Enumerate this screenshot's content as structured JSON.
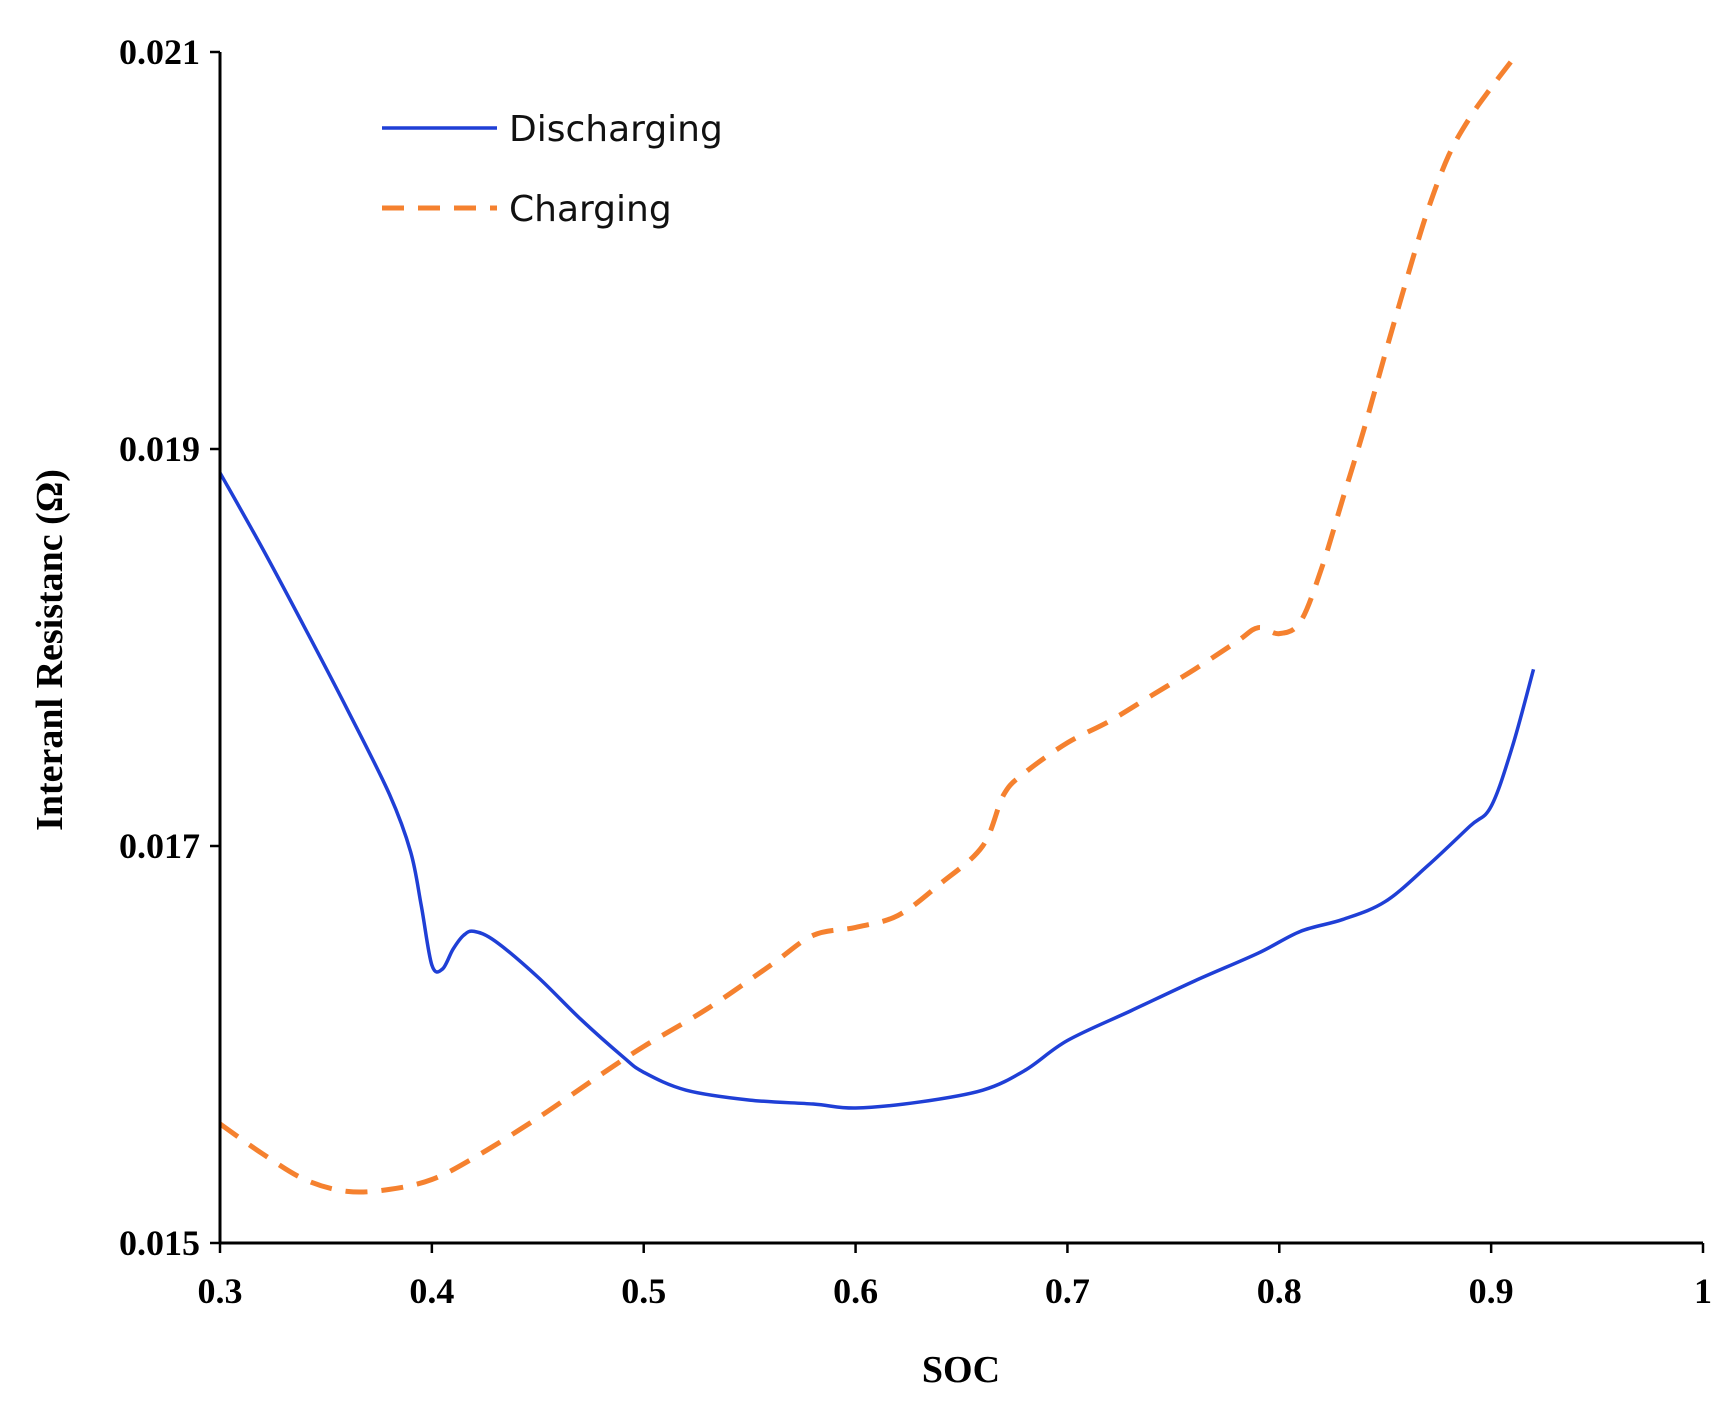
{
  "chart_data": {
    "type": "line",
    "title": "",
    "xlabel": "SOC",
    "ylabel": "Interanl Resistanc (Ω)",
    "xlim": [
      0.3,
      1
    ],
    "ylim": [
      0.015,
      0.021
    ],
    "x_ticks": [
      "0.3",
      "0.4",
      "0.5",
      "0.6",
      "0.7",
      "0.8",
      "0.9",
      "1"
    ],
    "x_tick_values": [
      0.3,
      0.4,
      0.5,
      0.6,
      0.7,
      0.8,
      0.9,
      1.0
    ],
    "y_ticks": [
      "0.015",
      "0.017",
      "0.019",
      "0.021"
    ],
    "y_tick_values": [
      0.015,
      0.017,
      0.019,
      0.021
    ],
    "grid": false,
    "legend_position": "top-left",
    "series": [
      {
        "name": "Discharging",
        "color": "#1f3fd6",
        "dash": "solid",
        "points": [
          [
            0.3,
            0.01888
          ],
          [
            0.32,
            0.0185
          ],
          [
            0.34,
            0.0181
          ],
          [
            0.36,
            0.01769
          ],
          [
            0.38,
            0.01726
          ],
          [
            0.39,
            0.01697
          ],
          [
            0.395,
            0.0167
          ],
          [
            0.4,
            0.0164
          ],
          [
            0.405,
            0.01638
          ],
          [
            0.41,
            0.01648
          ],
          [
            0.415,
            0.01655
          ],
          [
            0.42,
            0.01657
          ],
          [
            0.43,
            0.01652
          ],
          [
            0.45,
            0.01634
          ],
          [
            0.47,
            0.01613
          ],
          [
            0.49,
            0.01594
          ],
          [
            0.5,
            0.01586
          ],
          [
            0.52,
            0.01577
          ],
          [
            0.55,
            0.01572
          ],
          [
            0.58,
            0.0157
          ],
          [
            0.6,
            0.01568
          ],
          [
            0.63,
            0.01571
          ],
          [
            0.66,
            0.01577
          ],
          [
            0.68,
            0.01587
          ],
          [
            0.7,
            0.01602
          ],
          [
            0.73,
            0.01617
          ],
          [
            0.76,
            0.01632
          ],
          [
            0.79,
            0.01646
          ],
          [
            0.81,
            0.01657
          ],
          [
            0.83,
            0.01663
          ],
          [
            0.85,
            0.01672
          ],
          [
            0.87,
            0.0169
          ],
          [
            0.89,
            0.0171
          ],
          [
            0.9,
            0.0172
          ],
          [
            0.91,
            0.0175
          ],
          [
            0.92,
            0.01789
          ]
        ]
      },
      {
        "name": "Charging",
        "color": "#f5812f",
        "dash": "dashed",
        "points": [
          [
            0.3,
            0.0156
          ],
          [
            0.32,
            0.01545
          ],
          [
            0.34,
            0.01532
          ],
          [
            0.36,
            0.01526
          ],
          [
            0.38,
            0.01527
          ],
          [
            0.4,
            0.01532
          ],
          [
            0.42,
            0.01543
          ],
          [
            0.45,
            0.01563
          ],
          [
            0.48,
            0.01585
          ],
          [
            0.5,
            0.01599
          ],
          [
            0.53,
            0.01618
          ],
          [
            0.56,
            0.0164
          ],
          [
            0.58,
            0.01655
          ],
          [
            0.6,
            0.01659
          ],
          [
            0.62,
            0.01665
          ],
          [
            0.64,
            0.01681
          ],
          [
            0.66,
            0.017
          ],
          [
            0.67,
            0.01726
          ],
          [
            0.68,
            0.01737
          ],
          [
            0.7,
            0.01752
          ],
          [
            0.72,
            0.01763
          ],
          [
            0.74,
            0.01776
          ],
          [
            0.76,
            0.01789
          ],
          [
            0.78,
            0.01803
          ],
          [
            0.79,
            0.0181
          ],
          [
            0.8,
            0.01807
          ],
          [
            0.81,
            0.01813
          ],
          [
            0.82,
            0.0184
          ],
          [
            0.83,
            0.01875
          ],
          [
            0.84,
            0.0191
          ],
          [
            0.85,
            0.01948
          ],
          [
            0.86,
            0.01985
          ],
          [
            0.87,
            0.0202
          ],
          [
            0.88,
            0.02048
          ],
          [
            0.89,
            0.02067
          ],
          [
            0.9,
            0.02082
          ],
          [
            0.91,
            0.02096
          ]
        ]
      }
    ]
  }
}
